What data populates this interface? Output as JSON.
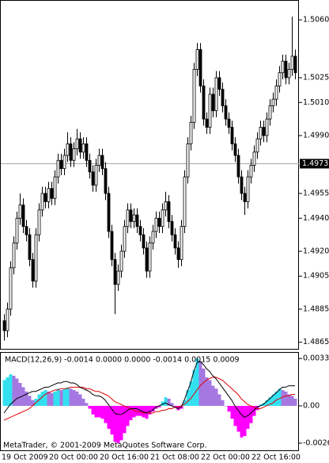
{
  "chart_data": [
    {
      "type": "candlestick",
      "categories": [
        "19 Oct 2009",
        null,
        null,
        null,
        null,
        null,
        null,
        null,
        null,
        null,
        null,
        null,
        null,
        null,
        null,
        "20 Oct 00:00",
        null,
        null,
        null,
        null,
        null,
        null,
        null,
        null,
        null,
        null,
        null,
        null,
        null,
        null,
        null,
        "20 Oct 16:00",
        null,
        null,
        null,
        null,
        null,
        null,
        null,
        null,
        null,
        null,
        null,
        null,
        null,
        null,
        null,
        "21 Oct 08:00",
        null,
        null,
        null,
        null,
        null,
        null,
        null,
        null,
        null,
        null,
        null,
        null,
        null,
        null,
        null,
        "22 Oct 00:00",
        null,
        null,
        null,
        null,
        null,
        null,
        null,
        null,
        null,
        null,
        null,
        null,
        null,
        null,
        null,
        "22 Oct 16:00",
        null,
        null,
        null,
        null,
        null,
        null,
        null,
        null,
        null,
        null,
        null,
        null,
        null
      ],
      "open": [
        1.4878,
        1.4872,
        1.4885,
        1.491,
        1.4925,
        1.494,
        1.4948,
        1.4935,
        1.493,
        1.4915,
        1.4902,
        1.493,
        1.4945,
        1.4955,
        1.495,
        1.4958,
        1.4952,
        1.4965,
        1.4975,
        1.497,
        1.4978,
        1.4985,
        1.4975,
        1.4982,
        1.4988,
        1.498,
        1.4985,
        1.4975,
        1.4968,
        1.496,
        1.4972,
        1.4978,
        1.497,
        1.4955,
        1.4932,
        1.4915,
        1.49,
        1.4908,
        1.492,
        1.4935,
        1.4945,
        1.4938,
        1.4942,
        1.4935,
        1.493,
        1.4922,
        1.4908,
        1.4925,
        1.4932,
        1.494,
        1.4935,
        1.4945,
        1.495,
        1.4938,
        1.493,
        1.4922,
        1.4915,
        1.4935,
        1.4965,
        1.4985,
        1.4998,
        1.503,
        1.5042,
        1.502,
        1.5,
        1.4995,
        1.5015,
        1.5005,
        1.5025,
        1.5018,
        1.5008,
        1.5,
        1.4995,
        1.4985,
        1.4978,
        1.4965,
        1.4955,
        1.495,
        1.4965,
        1.4972,
        1.498,
        1.4988,
        1.4995,
        1.499,
        1.5,
        1.5008,
        1.5012,
        1.502,
        1.5028,
        1.5035,
        1.5025,
        1.503,
        1.5038
      ],
      "high": [
        1.4882,
        1.4889,
        1.4914,
        1.4929,
        1.4944,
        1.4955,
        1.4952,
        1.4939,
        1.4934,
        1.4919,
        1.4934,
        1.4949,
        1.4959,
        1.4959,
        1.4962,
        1.4962,
        1.4969,
        1.4979,
        1.4979,
        1.4982,
        1.4992,
        1.4989,
        1.4986,
        1.4994,
        1.4992,
        1.4989,
        1.4989,
        1.4979,
        1.4972,
        1.4976,
        1.4982,
        1.4982,
        1.4974,
        1.4959,
        1.4936,
        1.4919,
        1.4912,
        1.4924,
        1.4939,
        1.4949,
        1.4949,
        1.4946,
        1.4946,
        1.4939,
        1.4934,
        1.4926,
        1.4929,
        1.4936,
        1.4944,
        1.4944,
        1.4949,
        1.4956,
        1.4954,
        1.4942,
        1.4934,
        1.4926,
        1.4939,
        1.4969,
        1.4989,
        1.5002,
        1.5034,
        1.5046,
        1.5046,
        1.5024,
        1.5004,
        1.5019,
        1.5019,
        1.5029,
        1.5029,
        1.5022,
        1.5012,
        1.5004,
        1.4999,
        1.4989,
        1.4982,
        1.4969,
        1.4959,
        1.4969,
        1.4976,
        1.4984,
        1.4992,
        1.4999,
        1.4999,
        1.5004,
        1.5012,
        1.5016,
        1.5024,
        1.5032,
        1.5039,
        1.5039,
        1.5034,
        1.5062,
        1.5042
      ],
      "low": [
        1.4866,
        1.4868,
        1.4881,
        1.4906,
        1.4921,
        1.4936,
        1.4931,
        1.4926,
        1.4911,
        1.4898,
        1.4898,
        1.4926,
        1.4941,
        1.4946,
        1.4946,
        1.4948,
        1.4948,
        1.4961,
        1.4966,
        1.4966,
        1.4974,
        1.4971,
        1.4971,
        1.4978,
        1.4976,
        1.4976,
        1.4971,
        1.4964,
        1.4956,
        1.4956,
        1.4968,
        1.4966,
        1.4951,
        1.4928,
        1.4911,
        1.4882,
        1.4896,
        1.4904,
        1.4916,
        1.4931,
        1.4934,
        1.4934,
        1.4931,
        1.4926,
        1.4918,
        1.4904,
        1.4904,
        1.4921,
        1.4928,
        1.4931,
        1.4931,
        1.4941,
        1.4934,
        1.4926,
        1.4918,
        1.491,
        1.4911,
        1.4931,
        1.4961,
        1.4981,
        1.4994,
        1.5026,
        1.5016,
        1.4996,
        1.4991,
        1.4991,
        1.5001,
        1.5001,
        1.5014,
        1.5004,
        1.4996,
        1.4991,
        1.4981,
        1.4974,
        1.4961,
        1.4951,
        1.4942,
        1.4946,
        1.4961,
        1.4968,
        1.4976,
        1.4984,
        1.4986,
        1.4986,
        1.4996,
        1.5004,
        1.5008,
        1.5016,
        1.5024,
        1.5021,
        1.5021,
        1.5026,
        1.5024
      ],
      "close": [
        1.4872,
        1.4885,
        1.491,
        1.4925,
        1.494,
        1.4948,
        1.4935,
        1.493,
        1.4915,
        1.4902,
        1.493,
        1.4945,
        1.4955,
        1.495,
        1.4958,
        1.4952,
        1.4965,
        1.4975,
        1.497,
        1.4978,
        1.4985,
        1.4975,
        1.4982,
        1.4988,
        1.498,
        1.4985,
        1.4975,
        1.4968,
        1.496,
        1.4972,
        1.4978,
        1.497,
        1.4955,
        1.4932,
        1.4915,
        1.49,
        1.4908,
        1.492,
        1.4935,
        1.4945,
        1.4938,
        1.4942,
        1.4935,
        1.493,
        1.4922,
        1.4908,
        1.4925,
        1.4932,
        1.494,
        1.4935,
        1.4945,
        1.495,
        1.4938,
        1.493,
        1.4922,
        1.4915,
        1.4935,
        1.4965,
        1.4985,
        1.4998,
        1.503,
        1.5042,
        1.502,
        1.5,
        1.4995,
        1.5015,
        1.5005,
        1.5025,
        1.5018,
        1.5008,
        1.5,
        1.4995,
        1.4985,
        1.4978,
        1.4965,
        1.4955,
        1.495,
        1.4965,
        1.4972,
        1.498,
        1.4988,
        1.4995,
        1.499,
        1.5,
        1.5008,
        1.5012,
        1.502,
        1.5028,
        1.5035,
        1.5025,
        1.503,
        1.5038,
        1.5028
      ],
      "ylim": [
        1.4861,
        1.5072
      ],
      "yticks": [
        {
          "value": 1.506,
          "label": "1.5060"
        },
        1.5025,
        {
          "value": 1.501,
          "label": "1.5010"
        },
        {
          "value": 1.499,
          "label": "1.4990"
        },
        1.4955,
        {
          "value": 1.494,
          "label": "1.4940"
        },
        {
          "value": 1.492,
          "label": "1.4920"
        },
        1.4905,
        1.4885,
        1.4865
      ],
      "hline": 1.4973,
      "up_color": "#ffffff",
      "down_color": "#000000"
    },
    {
      "type": "macd",
      "title": "MACD(12,26,9) -0.0014 0.0000 0.0000 -0.0014 0.0015 0.0009",
      "histogram": [
        0.0018,
        0.002,
        0.0022,
        0.0021,
        0.0019,
        0.0016,
        0.0013,
        0.001,
        0.0007,
        0.0004,
        0.0005,
        0.0008,
        0.001,
        0.0011,
        0.001,
        0.0009,
        0.001,
        0.0012,
        0.0011,
        0.0012,
        0.0013,
        0.0012,
        0.0011,
        0.001,
        0.0008,
        0.0005,
        0.0002,
        -0.0002,
        -0.0006,
        -0.0008,
        -0.0008,
        -0.0009,
        -0.0012,
        -0.0016,
        -0.002,
        -0.0025,
        -0.0026,
        -0.0024,
        -0.0019,
        -0.0014,
        -0.001,
        -0.0008,
        -0.0007,
        -0.0007,
        -0.0008,
        -0.0009,
        -0.0006,
        -0.0004,
        -0.0002,
        -0.0001,
        0.0003,
        0.0006,
        0.0005,
        0.0002,
        -0.0001,
        -0.0003,
        -0.0002,
        0.0004,
        0.0011,
        0.0017,
        0.0025,
        0.0033,
        0.0031,
        0.0026,
        0.002,
        0.0018,
        0.0014,
        0.0012,
        0.0008,
        0.0004,
        0,
        -0.0004,
        -0.0009,
        -0.0014,
        -0.0018,
        -0.0022,
        -0.0021,
        -0.0016,
        -0.0012,
        -0.0007,
        -0.0003,
        0.0001,
        0.0002,
        0.0004,
        0.0006,
        0.0008,
        0.001,
        0.0012,
        0.0011,
        0.001,
        0.0008,
        0.0007,
        0.0005
      ],
      "colors": {
        "rising": "#33e0f0",
        "falling": "#a478e0",
        "negative": "#ff00ff"
      },
      "main": {
        "color": "#000000",
        "values": [
          -0.0005,
          -0.0002,
          0.0001,
          0.0003,
          0.0005,
          0.0006,
          0.0007,
          0.0008,
          0.0009,
          0.001,
          0.001,
          0.0011,
          0.0012,
          0.0013,
          0.0013,
          0.0014,
          0.0015,
          0.0016,
          0.0016,
          0.0017,
          0.0017,
          0.0016,
          0.0016,
          0.0015,
          0.0013,
          0.0012,
          0.0011,
          0.001,
          0.0008,
          0.0007,
          0.0007,
          0.0006,
          0.0004,
          0.0001,
          -0.0002,
          -0.0005,
          -0.0006,
          -0.0006,
          -0.0005,
          -0.0003,
          -0.0002,
          -0.0002,
          -0.0002,
          -0.0003,
          -0.0004,
          -0.0005,
          -0.0004,
          -0.0003,
          -0.0001,
          0,
          0.0001,
          0.0002,
          0.0001,
          0,
          -0.0001,
          -0.0002,
          -0.0001,
          0.0004,
          0.001,
          0.0016,
          0.0024,
          0.003,
          0.0031,
          0.0029,
          0.0026,
          0.0024,
          0.0021,
          0.0019,
          0.0016,
          0.0013,
          0.001,
          0.0007,
          0.0004,
          0,
          -0.0003,
          -0.0006,
          -0.0008,
          -0.0007,
          -0.0005,
          -0.0003,
          -0.0001,
          0,
          0.0001,
          0.0003,
          0.0005,
          0.0007,
          0.0009,
          0.0011,
          0.0013,
          0.0013,
          0.0014,
          0.0014,
          0.0014
        ]
      },
      "signal": {
        "color": "#e00000",
        "values": [
          -0.001,
          -0.0009,
          -0.0008,
          -0.0007,
          -0.0006,
          -0.0005,
          -0.0004,
          -0.0003,
          -0.0002,
          0,
          0.0002,
          0.0004,
          0.0006,
          0.0008,
          0.0009,
          0.001,
          0.0011,
          0.0011,
          0.0012,
          0.0012,
          0.0012,
          0.0013,
          0.0013,
          0.0013,
          0.0013,
          0.0013,
          0.0012,
          0.0012,
          0.0011,
          0.001,
          0.001,
          0.0009,
          0.0008,
          0.0007,
          0.0005,
          0.0003,
          0.0002,
          0.0001,
          0,
          -0.0001,
          -0.0002,
          -0.0003,
          -0.0004,
          -0.0004,
          -0.0005,
          -0.0005,
          -0.0005,
          -0.0005,
          -0.0004,
          -0.0004,
          -0.0003,
          -0.0003,
          -0.0002,
          -0.0002,
          -0.0001,
          -0.0001,
          0,
          0.0001,
          0.0003,
          0.0005,
          0.0008,
          0.0011,
          0.0014,
          0.0016,
          0.0018,
          0.0019,
          0.002,
          0.002,
          0.0019,
          0.0018,
          0.0016,
          0.0014,
          0.0012,
          0.001,
          0.0008,
          0.0005,
          0.0003,
          0.0001,
          0,
          -0.0001,
          -0.0002,
          -0.0002,
          -0.0001,
          0,
          0.0001,
          0.0002,
          0.0004,
          0.0005,
          0.0006,
          0.0007,
          0.0007,
          0.0008,
          0.0008
        ]
      },
      "ylim": [
        -0.0031,
        0.0037
      ],
      "yticks": [
        0.0033,
        {
          "value": 0,
          "label": "0.00"
        },
        -0.0026
      ]
    }
  ],
  "footer": "MetaTrader, © 2001-2009 MetaQuotes Software Corp."
}
